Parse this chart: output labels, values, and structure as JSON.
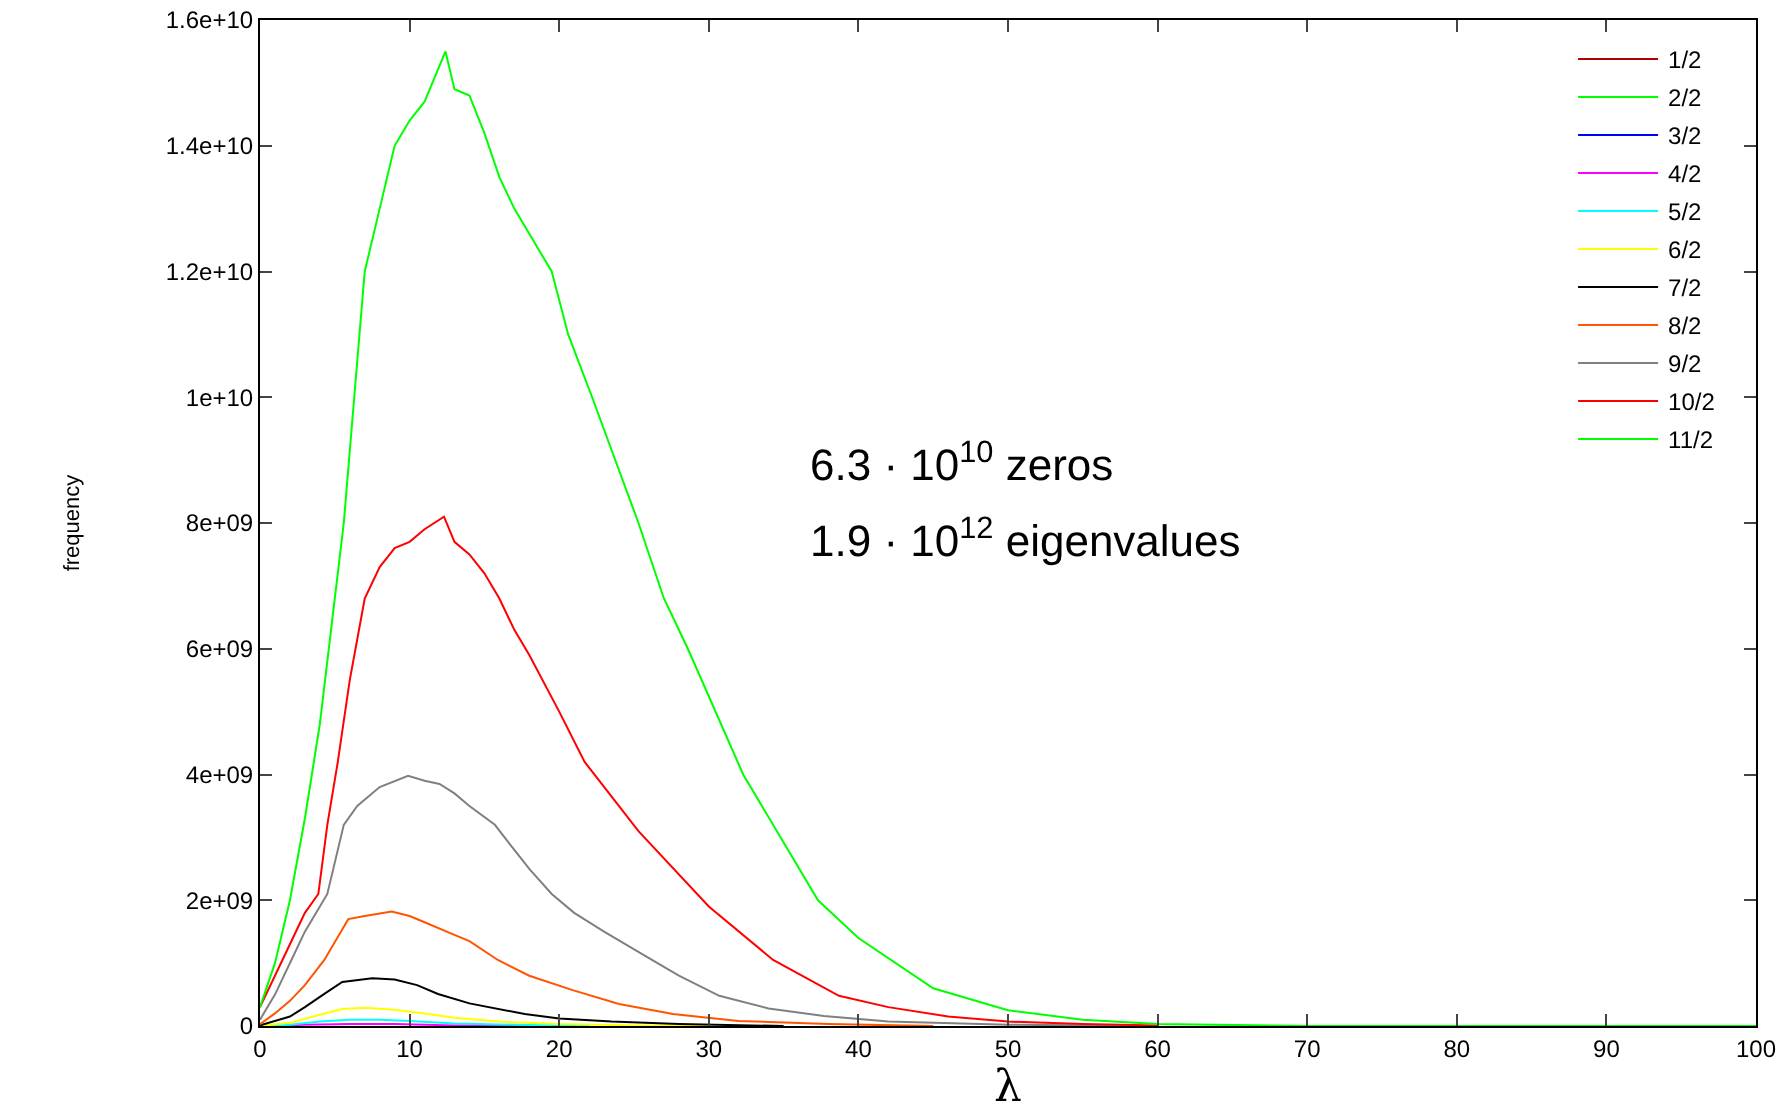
{
  "chart_data": {
    "type": "line",
    "xlabel": "λ",
    "ylabel": "frequency",
    "xlim": [
      0,
      100
    ],
    "ylim": [
      0,
      16000000000
    ],
    "xticks": [
      0,
      10,
      20,
      30,
      40,
      50,
      60,
      70,
      80,
      90,
      100
    ],
    "yticks": [
      0,
      {
        "value": 2000000000,
        "label": "2e+09"
      },
      {
        "value": 4000000000,
        "label": "4e+09"
      },
      {
        "value": 6000000000,
        "label": "6e+09"
      },
      {
        "value": 8000000000,
        "label": "8e+09"
      },
      {
        "value": 10000000000,
        "label": "1e+10"
      },
      {
        "value": 12000000000,
        "label": "1.2e+10"
      },
      {
        "value": 14000000000,
        "label": "1.4e+10"
      },
      {
        "value": 16000000000,
        "label": "1.6e+10"
      }
    ],
    "grid": false,
    "legend": "top right",
    "marker": "none",
    "line_style": "solid",
    "annotations": [
      "6.3 · 10$^{10}$ zeros",
      "1.9 · 10$^{12}$ eigenvalues"
    ],
    "series": [
      {
        "name": "1/2",
        "color": "#b00000"
      },
      {
        "name": "2/2",
        "color": "#00ff00"
      },
      {
        "name": "3/2",
        "color": "#0000ff"
      },
      {
        "name": "4/2",
        "color": "#ff00ff",
        "x": [
          0,
          3,
          6,
          9,
          13,
          18
        ],
        "values": [
          0,
          20000000,
          30000000,
          30000000,
          10000000,
          0
        ]
      },
      {
        "name": "5/2",
        "color": "#00ffff",
        "x": [
          0,
          2,
          4,
          6,
          8,
          10,
          13,
          17,
          22
        ],
        "values": [
          0,
          20000000,
          70000000,
          100000000,
          100000000,
          80000000,
          40000000,
          20000000,
          0
        ]
      },
      {
        "name": "6/2",
        "color": "#ffff00",
        "x": [
          0,
          2,
          4,
          5.5,
          7,
          9,
          11,
          13,
          16,
          20,
          25,
          30
        ],
        "values": [
          0,
          50000000,
          180000000,
          270000000,
          290000000,
          260000000,
          200000000,
          130000000,
          70000000,
          30000000,
          10000000,
          0
        ]
      },
      {
        "name": "7/2",
        "color": "#000000",
        "x": [
          0,
          2,
          3,
          4.3,
          5.5,
          7.5,
          9,
          10.5,
          11.9,
          14,
          17.7,
          20,
          23.5,
          28,
          35
        ],
        "values": [
          10000000,
          150000000,
          300000000,
          510000000,
          700000000,
          760000000,
          740000000,
          650000000,
          510000000,
          360000000,
          190000000,
          120000000,
          70000000,
          30000000,
          0
        ]
      },
      {
        "name": "8/2",
        "color": "#ff5500",
        "x": [
          0,
          1,
          2,
          3,
          4.3,
          5.9,
          7,
          8.8,
          10,
          11,
          12.8,
          14,
          15.9,
          18,
          20.9,
          24,
          27.6,
          32,
          38,
          45
        ],
        "values": [
          30000000,
          200000000,
          400000000,
          650000000,
          1050000000,
          1700000000,
          1750000000,
          1820000000,
          1750000000,
          1650000000,
          1470000000,
          1350000000,
          1050000000,
          800000000,
          570000000,
          350000000,
          190000000,
          80000000,
          30000000,
          0
        ]
      },
      {
        "name": "9/2",
        "color": "#808080",
        "x": [
          0,
          1,
          2.1,
          3,
          4.5,
          5.6,
          6.5,
          8,
          9.9,
          11,
          12,
          13,
          14,
          15.7,
          17,
          18,
          19.5,
          21,
          23,
          26.2,
          28,
          30.7,
          34,
          37.7,
          42,
          50,
          60
        ],
        "values": [
          100000000,
          500000000,
          1050000000,
          1500000000,
          2100000000,
          3200000000,
          3500000000,
          3800000000,
          3980000000,
          3900000000,
          3850000000,
          3700000000,
          3500000000,
          3200000000,
          2800000000,
          2500000000,
          2100000000,
          1800000000,
          1500000000,
          1050000000,
          800000000,
          480000000,
          280000000,
          160000000,
          70000000,
          20000000,
          0
        ]
      },
      {
        "name": "10/2",
        "color": "#ff0000",
        "x": [
          0,
          1,
          2,
          3,
          3.9,
          4.5,
          5.2,
          6,
          7,
          8,
          9,
          10,
          11,
          12.3,
          13,
          14,
          15,
          16,
          17,
          18,
          20,
          21.7,
          25.3,
          30,
          34.3,
          38.7,
          42,
          46,
          50,
          55,
          60
        ],
        "values": [
          300000000,
          800000000,
          1300000000,
          1800000000,
          2100000000,
          3200000000,
          4200000000,
          5500000000,
          6800000000,
          7300000000,
          7600000000,
          7700000000,
          7900000000,
          8100000000,
          7700000000,
          7500000000,
          7200000000,
          6800000000,
          6300000000,
          5900000000,
          5000000000,
          4200000000,
          3100000000,
          1900000000,
          1050000000,
          480000000,
          300000000,
          150000000,
          70000000,
          30000000,
          10000000
        ]
      },
      {
        "name": "11/2",
        "color": "#00ff00",
        "x": [
          0,
          1,
          2,
          3,
          4,
          5,
          5.6,
          6.3,
          7,
          8,
          9,
          10,
          11,
          12.4,
          13,
          14,
          15,
          16,
          17,
          18,
          19.5,
          20.6,
          22.2,
          25.3,
          27,
          28.6,
          32.3,
          37.3,
          40,
          45,
          50,
          55,
          60,
          70,
          100
        ],
        "values": [
          300000000,
          1000000000,
          2000000000,
          3300000000,
          4800000000,
          6800000000,
          8000000000,
          10000000000,
          12000000000,
          13000000000,
          14000000000,
          14400000000,
          14700000000,
          15500000000,
          14900000000,
          14800000000,
          14200000000,
          13500000000,
          13000000000,
          12600000000,
          12000000000,
          11000000000,
          10000000000,
          8000000000,
          6800000000,
          6000000000,
          4000000000,
          2000000000,
          1400000000,
          600000000,
          250000000,
          100000000,
          30000000,
          0,
          0
        ]
      }
    ]
  }
}
